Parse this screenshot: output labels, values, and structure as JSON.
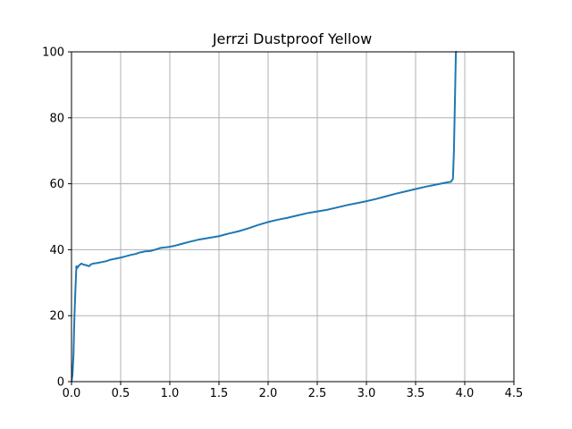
{
  "chart_data": {
    "type": "line",
    "title": "Jerrzi Dustproof Yellow",
    "xlabel": "",
    "ylabel": "",
    "xlim": [
      0,
      4.5
    ],
    "ylim": [
      0,
      100
    ],
    "xticks": [
      0.0,
      0.5,
      1.0,
      1.5,
      2.0,
      2.5,
      3.0,
      3.5,
      4.0,
      4.5
    ],
    "xtick_labels": [
      "0.0",
      "0.5",
      "1.0",
      "1.5",
      "2.0",
      "2.5",
      "3.0",
      "3.5",
      "4.0",
      "4.5"
    ],
    "yticks": [
      0,
      20,
      40,
      60,
      80,
      100
    ],
    "ytick_labels": [
      "0",
      "20",
      "40",
      "60",
      "80",
      "100"
    ],
    "grid": true,
    "series": [
      {
        "color": "#1f77b4",
        "x": [
          0.0,
          0.01,
          0.02,
          0.03,
          0.04,
          0.05,
          0.06,
          0.07,
          0.08,
          0.1,
          0.12,
          0.15,
          0.18,
          0.2,
          0.22,
          0.25,
          0.3,
          0.35,
          0.4,
          0.45,
          0.5,
          0.55,
          0.6,
          0.65,
          0.7,
          0.75,
          0.8,
          0.85,
          0.9,
          0.95,
          1.0,
          1.05,
          1.1,
          1.15,
          1.2,
          1.3,
          1.4,
          1.5,
          1.6,
          1.7,
          1.8,
          1.9,
          2.0,
          2.1,
          2.2,
          2.3,
          2.4,
          2.5,
          2.6,
          2.7,
          2.8,
          2.9,
          3.0,
          3.1,
          3.2,
          3.3,
          3.4,
          3.5,
          3.6,
          3.7,
          3.8,
          3.86,
          3.88,
          3.89,
          3.9,
          3.91,
          3.92
        ],
        "y": [
          0,
          2,
          8,
          20,
          28,
          35,
          34.5,
          35,
          35.3,
          35.8,
          35.5,
          35.3,
          35.0,
          35.6,
          35.8,
          35.9,
          36.2,
          36.5,
          37.0,
          37.3,
          37.6,
          38.0,
          38.4,
          38.7,
          39.2,
          39.5,
          39.6,
          40.0,
          40.5,
          40.7,
          40.9,
          41.2,
          41.6,
          42.0,
          42.4,
          43.1,
          43.6,
          44.1,
          44.9,
          45.6,
          46.5,
          47.5,
          48.4,
          49.1,
          49.7,
          50.4,
          51.1,
          51.6,
          52.1,
          52.8,
          53.5,
          54.1,
          54.7,
          55.4,
          56.2,
          57.0,
          57.7,
          58.4,
          59.1,
          59.7,
          60.3,
          60.6,
          61.5,
          70,
          85,
          100,
          100
        ]
      }
    ]
  }
}
